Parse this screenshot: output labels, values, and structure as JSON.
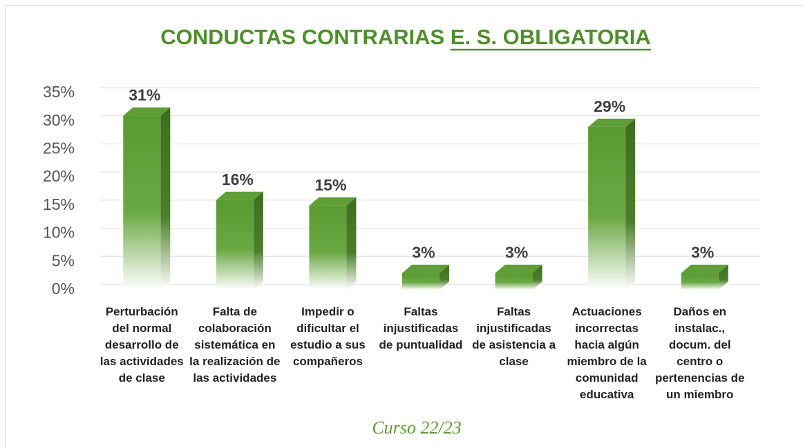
{
  "chart_data": {
    "type": "bar3d",
    "title": "CONDUCTAS CONTRARIAS E. S. OBLIGATORIA",
    "categories": [
      "Perturbación del normal desarrollo de las actividades de clase",
      "Falta de colaboración sistemática en la realización de las actividades",
      "Impedir o dificultar el estudio a sus compañeros",
      "Faltas injustificadas de puntualidad",
      "Faltas injustificadas de asistencia a clase",
      "Actuaciones incorrectas hacia algún miembro de la comunidad educativa",
      "Daños en instalac., docum. del centro o pertenencias de un miembro"
    ],
    "values": [
      31,
      16,
      15,
      3,
      3,
      29,
      3
    ],
    "value_labels": [
      "31%",
      "16%",
      "15%",
      "3%",
      "3%",
      "29%",
      "3%"
    ],
    "color": "#5a9a32",
    "ylim": [
      0,
      35
    ],
    "yticks": [
      {
        "value": 0,
        "label": "0%"
      },
      {
        "value": 5,
        "label": "5%"
      },
      {
        "value": 10,
        "label": "10%"
      },
      {
        "value": 15,
        "label": "15%"
      },
      {
        "value": 20,
        "label": "20%"
      },
      {
        "value": 25,
        "label": "25%"
      },
      {
        "value": 30,
        "label": "30%"
      },
      {
        "value": 35,
        "label": "35%"
      }
    ],
    "grid": true,
    "annotation": "Curso 22/23"
  }
}
